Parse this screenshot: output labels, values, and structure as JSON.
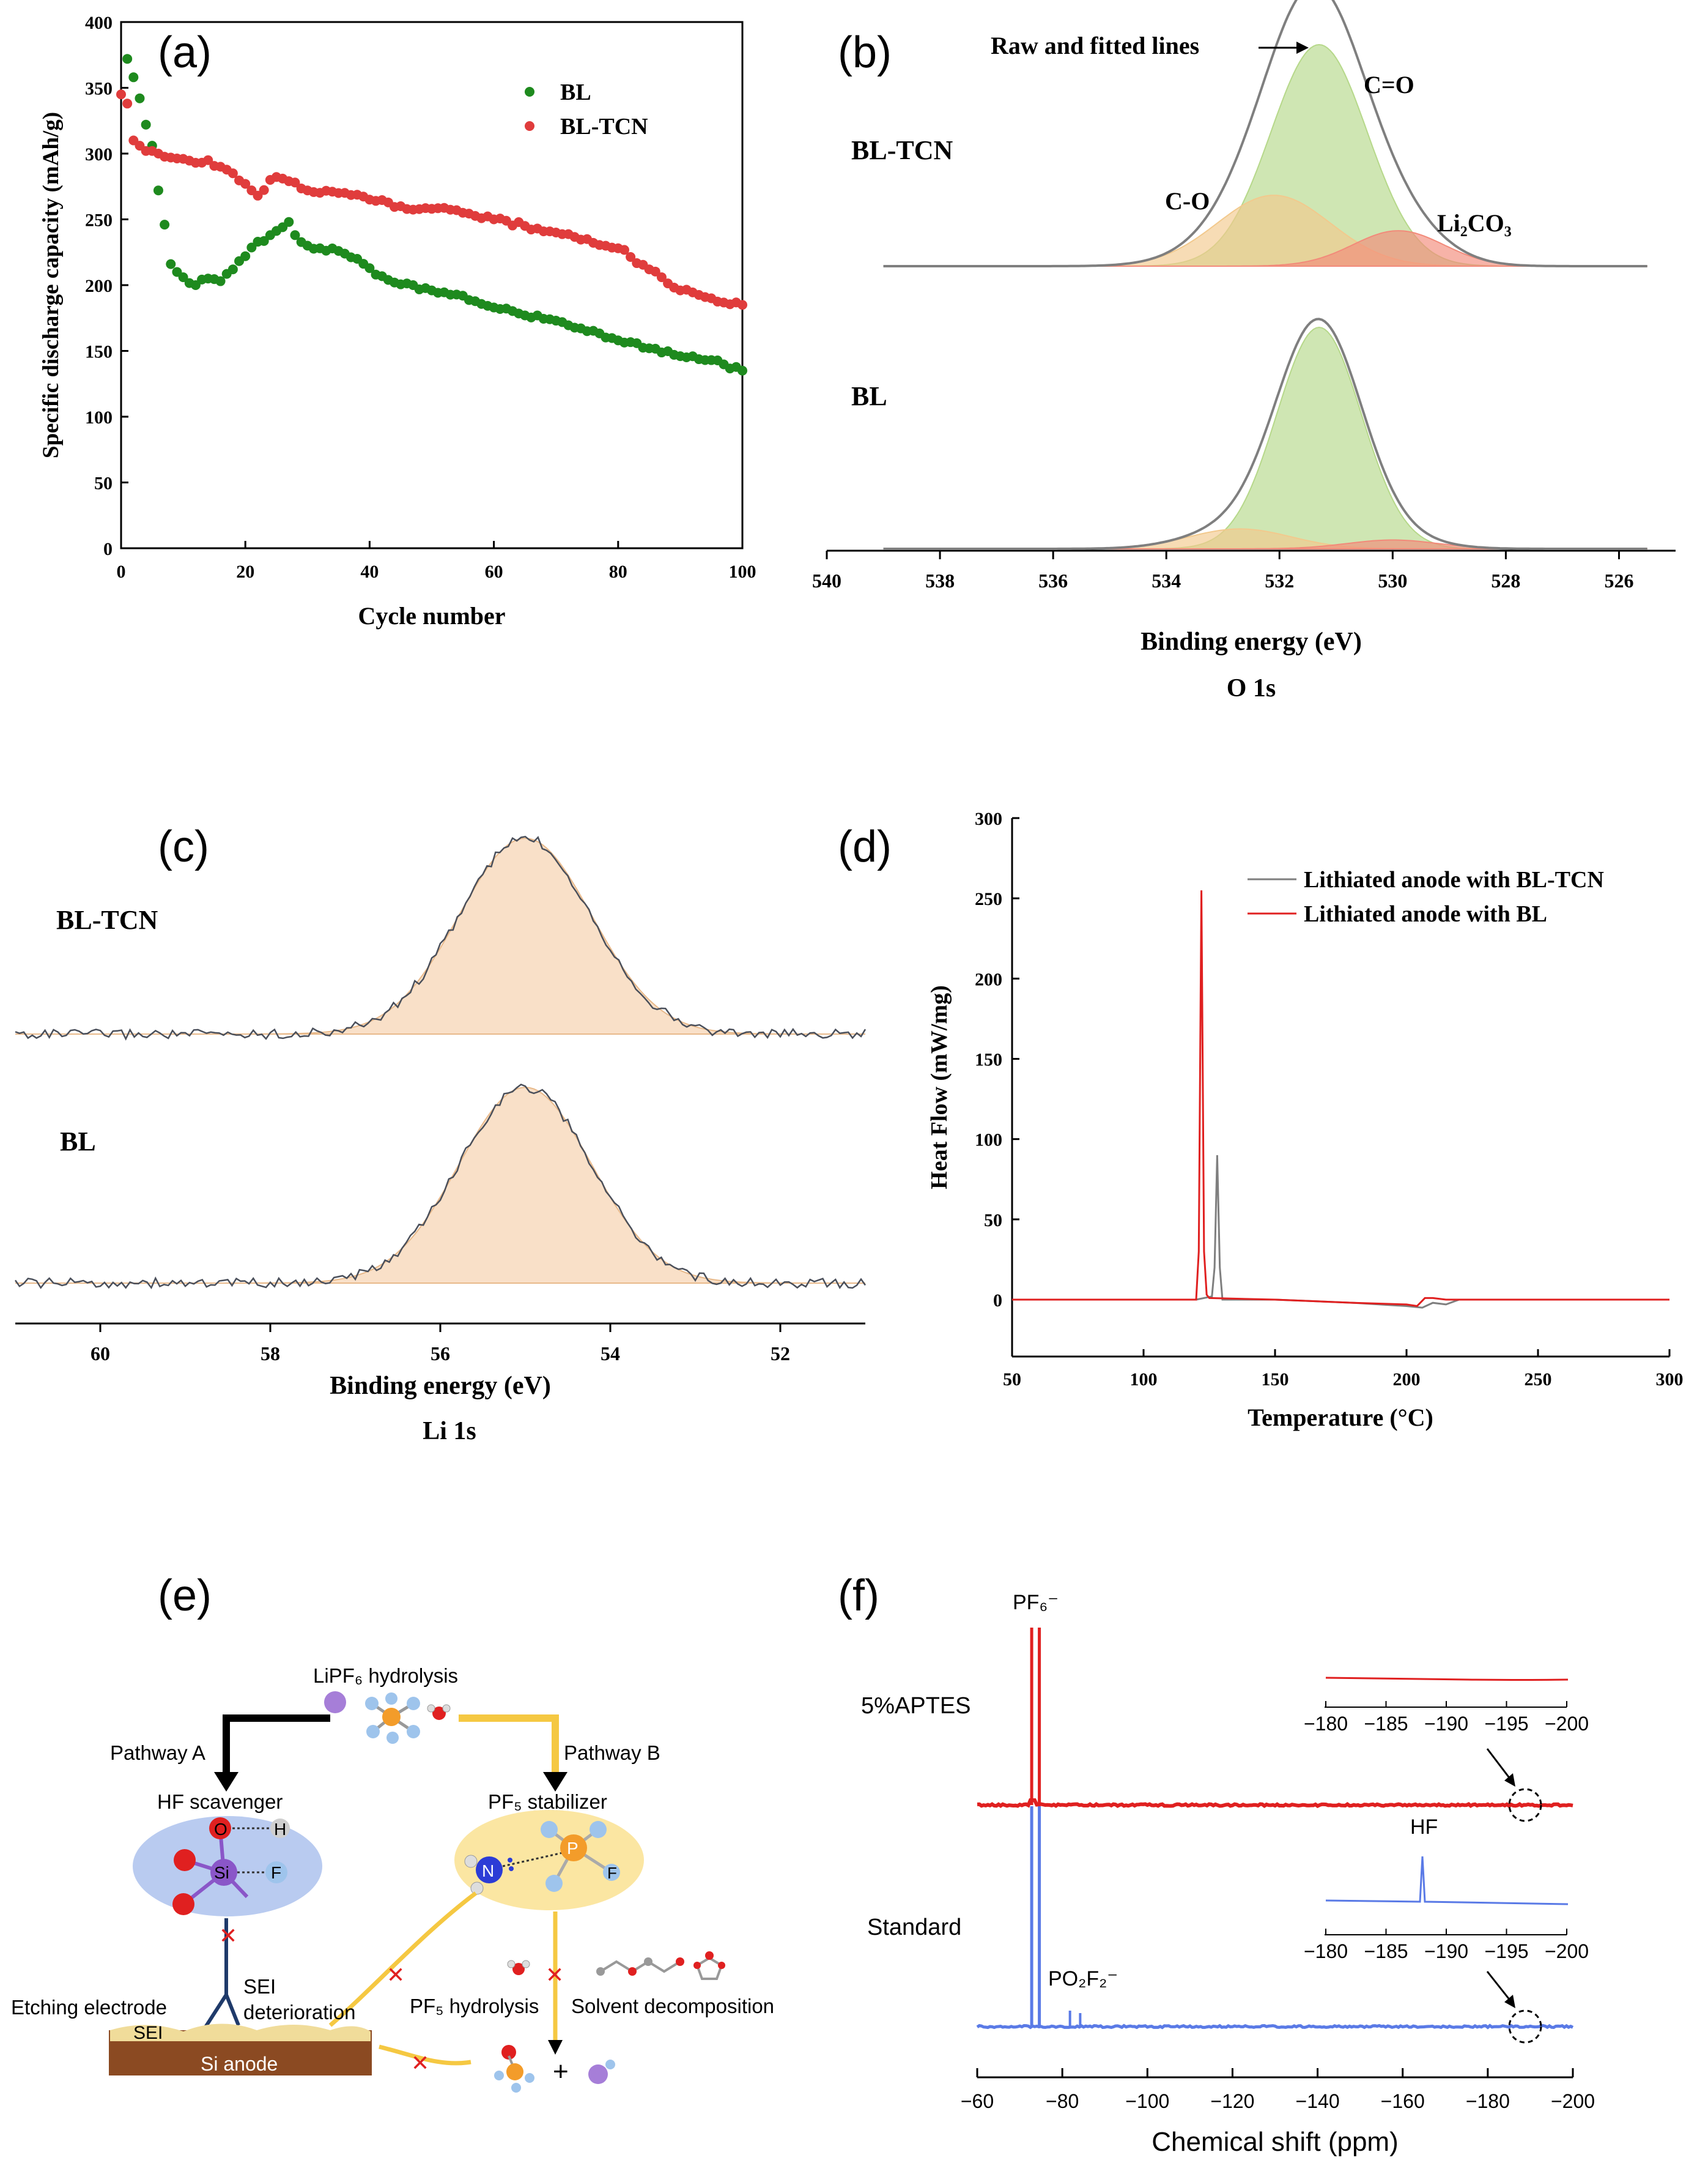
{
  "panels": {
    "a": "(a)",
    "b": "(b)",
    "c": "(c)",
    "d": "(d)",
    "e": "(e)",
    "f": "(f)"
  },
  "chart_data": [
    {
      "id": "a",
      "type": "scatter",
      "xlabel": "Cycle number",
      "ylabel": "Specific discharge capacity (mAh/g)",
      "xlim": [
        0,
        100
      ],
      "ylim": [
        0,
        400
      ],
      "xticks": [
        "0",
        "20",
        "40",
        "60",
        "80",
        "100"
      ],
      "yticks": [
        "0",
        "50",
        "100",
        "150",
        "200",
        "250",
        "300",
        "350",
        "400"
      ],
      "legend": "top-right",
      "series": [
        {
          "name": "BL",
          "color": "#1e8a1e",
          "x": [
            1,
            2,
            3,
            4,
            5,
            6,
            7,
            8,
            9,
            10,
            12,
            14,
            16,
            18,
            20,
            22,
            24,
            26,
            27,
            28,
            30,
            32,
            35,
            38,
            41,
            44,
            47,
            50,
            55,
            60,
            65,
            70,
            75,
            80,
            85,
            90,
            95,
            100
          ],
          "y": [
            372,
            358,
            342,
            322,
            306,
            272,
            246,
            216,
            210,
            206,
            200,
            205,
            203,
            212,
            222,
            233,
            238,
            244,
            248,
            238,
            230,
            228,
            226,
            220,
            208,
            202,
            200,
            196,
            192,
            183,
            177,
            173,
            165,
            158,
            152,
            146,
            143,
            135
          ]
        },
        {
          "name": "BL-TCN",
          "color": "#e03c3c",
          "x": [
            0,
            1,
            2,
            3,
            4,
            5,
            6,
            8,
            10,
            12,
            14,
            16,
            18,
            20,
            22,
            24,
            26,
            28,
            30,
            35,
            40,
            45,
            50,
            55,
            60,
            65,
            70,
            75,
            80,
            85,
            90,
            95,
            100
          ],
          "y": [
            345,
            338,
            310,
            306,
            302,
            302,
            300,
            297,
            296,
            293,
            295,
            290,
            285,
            277,
            268,
            280,
            281,
            278,
            272,
            270,
            265,
            260,
            258,
            255,
            250,
            245,
            240,
            235,
            228,
            212,
            196,
            190,
            185
          ]
        }
      ]
    },
    {
      "id": "b",
      "type": "line",
      "xlabel": "Binding energy (eV)",
      "subtitle": "O 1s",
      "xlim": [
        540,
        525
      ],
      "xticks": [
        "540",
        "538",
        "536",
        "534",
        "532",
        "530",
        "528",
        "526"
      ],
      "annotation_raw": "Raw and fitted lines",
      "peaks": {
        "c_o": "C-O",
        "c_eq_o": "C=O",
        "li2co3": "Li₂CO₃"
      },
      "series": [
        {
          "name": "BL-TCN",
          "components": [
            {
              "label": "C=O",
              "center": 531.3,
              "height": 1.0,
              "width": 0.85,
              "color": "#b6d88a"
            },
            {
              "label": "C-O",
              "center": 532.1,
              "height": 0.32,
              "width": 1.0,
              "color": "#f2c98d"
            },
            {
              "label": "Li2CO3",
              "center": 529.9,
              "height": 0.16,
              "width": 0.8,
              "color": "#f28a7a"
            }
          ]
        },
        {
          "name": "BL",
          "components": [
            {
              "label": "C=O",
              "center": 531.3,
              "height": 1.0,
              "width": 0.75,
              "color": "#b6d88a"
            },
            {
              "label": "C-O",
              "center": 532.7,
              "height": 0.09,
              "width": 0.9,
              "color": "#f2c98d"
            },
            {
              "label": "Li2CO3",
              "center": 530.0,
              "height": 0.04,
              "width": 0.8,
              "color": "#f28a7a"
            }
          ]
        }
      ]
    },
    {
      "id": "c",
      "type": "line",
      "xlabel": "Binding energy (eV)",
      "subtitle": "Li 1s",
      "xlim": [
        61,
        51
      ],
      "xticks": [
        "60",
        "58",
        "56",
        "54",
        "52"
      ],
      "series": [
        {
          "name": "BL-TCN",
          "center": 55.0,
          "width": 0.78
        },
        {
          "name": "BL",
          "center": 55.0,
          "width": 0.78
        }
      ]
    },
    {
      "id": "d",
      "type": "line",
      "xlabel": "Temperature (°C)",
      "ylabel": "Heat Flow (mW/mg)",
      "xlim": [
        50,
        300
      ],
      "ylim": [
        -20,
        300
      ],
      "xticks": [
        "50",
        "100",
        "150",
        "200",
        "250",
        "300"
      ],
      "yticks": [
        "0",
        "50",
        "100",
        "150",
        "200",
        "250",
        "300"
      ],
      "series": [
        {
          "name": "Lithiated anode with BL-TCN",
          "color": "#7f7f7f",
          "x": [
            50,
            120,
            126,
            127,
            128,
            129,
            130,
            150,
            180,
            200,
            206,
            210,
            215,
            220,
            300
          ],
          "y": [
            0,
            0,
            2,
            20,
            90,
            20,
            0,
            0,
            -2,
            -4,
            -5,
            -2,
            -3,
            0,
            0
          ]
        },
        {
          "name": "Lithiated anode with BL",
          "color": "#e02020",
          "x": [
            50,
            120,
            121,
            122,
            123,
            124,
            125,
            150,
            180,
            200,
            204,
            207,
            210,
            215,
            220,
            300
          ],
          "y": [
            0,
            0,
            30,
            255,
            30,
            3,
            1,
            0,
            -2,
            -3,
            -4,
            1,
            1,
            0,
            0,
            0
          ]
        }
      ]
    },
    {
      "id": "f",
      "type": "line",
      "xlabel": "Chemical shift (ppm)",
      "xlim": [
        -60,
        -200
      ],
      "xticks": [
        "−60",
        "−80",
        "−100",
        "−120",
        "−140",
        "−160",
        "−180",
        "−200"
      ],
      "inset_xticks": [
        "−180",
        "−185",
        "−190",
        "−195",
        "−200"
      ],
      "peaks": {
        "pf6": "PF₆⁻",
        "po2f2": "PO₂F₂⁻",
        "hf": "HF"
      },
      "series": [
        {
          "name": "5%APTES",
          "color": "#e02020"
        },
        {
          "name": "Standard",
          "color": "#5a7ae6"
        }
      ]
    }
  ],
  "scheme": {
    "top_label": "LiPF₆ hydrolysis",
    "pathway_a": "Pathway A",
    "pathway_b": "Pathway B",
    "hf_scavenger": "HF scavenger",
    "pf5_stabilizer": "PF₅ stabilizer",
    "etching": "Etching electrode",
    "sei_det": "SEI deterioration",
    "pf5_hyd": "PF₅ hydrolysis",
    "solvent_dec": "Solvent decomposition",
    "sei": "SEI",
    "si_anode": "Si anode",
    "atom_o": "O",
    "atom_h": "H",
    "atom_si": "Si",
    "atom_f": "F",
    "atom_n": "N",
    "atom_p": "P",
    "atom_f2": "F",
    "plus": "+"
  }
}
